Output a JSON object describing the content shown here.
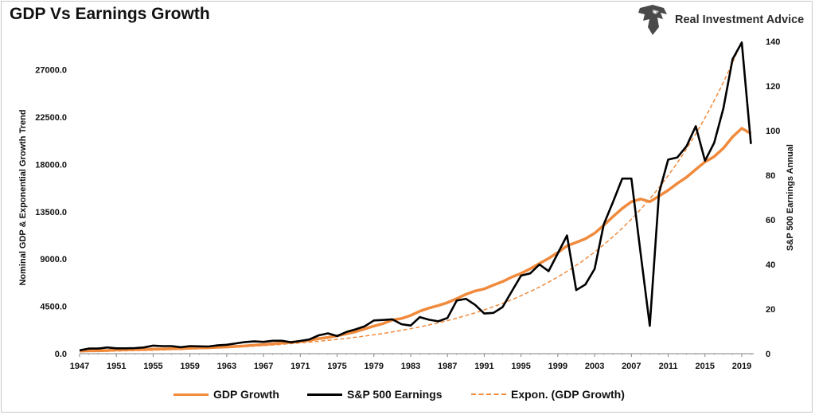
{
  "header": {
    "title": "GDP Vs Earnings Growth",
    "brand": "Real Investment Advice"
  },
  "colors": {
    "gdp": "#f08a3c",
    "earnings": "#000000",
    "trend": "#f08a3c"
  },
  "chart_data": {
    "type": "line",
    "title": "GDP Vs Earnings Growth",
    "ylabel_left": "Nominal GDP & Exponential Growth Trend",
    "ylabel_right": "S&P 500 Earnings Annual",
    "ylim_left": [
      0,
      29700
    ],
    "ylim_right": [
      0,
      140
    ],
    "yticks_left": [
      "0.0",
      "4500.0",
      "9000.0",
      "13500.0",
      "18000.0",
      "22500.0",
      "27000.0"
    ],
    "yticks_right": [
      "0",
      "20",
      "40",
      "60",
      "80",
      "100",
      "120",
      "140"
    ],
    "xticks": [
      "1947",
      "1951",
      "1955",
      "1959",
      "1963",
      "1967",
      "1971",
      "1975",
      "1979",
      "1983",
      "1987",
      "1991",
      "1995",
      "1999",
      "2003",
      "2007",
      "2011",
      "2015",
      "2019"
    ],
    "grid": false,
    "legend_position": "bottom",
    "series": [
      {
        "name": "GDP Growth",
        "axis": "left",
        "x": [
          1947,
          1948,
          1949,
          1950,
          1951,
          1952,
          1953,
          1954,
          1955,
          1956,
          1957,
          1958,
          1959,
          1960,
          1961,
          1962,
          1963,
          1964,
          1965,
          1966,
          1967,
          1968,
          1969,
          1970,
          1971,
          1972,
          1973,
          1974,
          1975,
          1976,
          1977,
          1978,
          1979,
          1980,
          1981,
          1982,
          1983,
          1984,
          1985,
          1986,
          1987,
          1988,
          1989,
          1990,
          1991,
          1992,
          1993,
          1994,
          1995,
          1996,
          1997,
          1998,
          1999,
          2000,
          2001,
          2002,
          2003,
          2004,
          2005,
          2006,
          2007,
          2008,
          2009,
          2010,
          2011,
          2012,
          2013,
          2014,
          2015,
          2016,
          2017,
          2018,
          2019,
          2020
        ],
        "values": [
          244,
          269,
          272,
          301,
          348,
          368,
          389,
          391,
          425,
          449,
          474,
          481,
          522,
          543,
          563,
          605,
          638,
          686,
          743,
          815,
          862,
          943,
          1019,
          1073,
          1164,
          1280,
          1429,
          1549,
          1689,
          1877,
          2086,
          2357,
          2632,
          2857,
          3207,
          3343,
          3634,
          4037,
          4339,
          4579,
          4855,
          5236,
          5642,
          5963,
          6158,
          6520,
          6859,
          7287,
          7639,
          8073,
          8577,
          9062,
          9631,
          10252,
          10582,
          10936,
          11458,
          12214,
          13037,
          13815,
          14452,
          14713,
          14449,
          14992,
          15543,
          16197,
          16785,
          17527,
          18238,
          18745,
          19543,
          20612,
          21433,
          20937
        ]
      },
      {
        "name": "S&P 500 Earnings",
        "axis": "right",
        "x": [
          1947,
          1948,
          1949,
          1950,
          1951,
          1952,
          1953,
          1954,
          1955,
          1956,
          1957,
          1958,
          1959,
          1960,
          1961,
          1962,
          1963,
          1964,
          1965,
          1966,
          1967,
          1968,
          1969,
          1970,
          1971,
          1972,
          1973,
          1974,
          1975,
          1976,
          1977,
          1978,
          1979,
          1980,
          1981,
          1982,
          1983,
          1984,
          1985,
          1986,
          1987,
          1988,
          1989,
          1990,
          1991,
          1992,
          1993,
          1994,
          1995,
          1996,
          1997,
          1998,
          1999,
          2000,
          2001,
          2002,
          2003,
          2004,
          2005,
          2006,
          2007,
          2008,
          2009,
          2010,
          2011,
          2012,
          2013,
          2014,
          2015,
          2016,
          2017,
          2018,
          2019,
          2020
        ],
        "values": [
          1.5,
          2.3,
          2.3,
          2.8,
          2.4,
          2.4,
          2.5,
          2.8,
          3.6,
          3.4,
          3.4,
          2.9,
          3.4,
          3.3,
          3.2,
          3.7,
          4.0,
          4.6,
          5.2,
          5.5,
          5.3,
          5.8,
          5.8,
          5.1,
          5.7,
          6.4,
          8.2,
          9.1,
          7.9,
          9.7,
          10.9,
          12.3,
          14.9,
          15.1,
          15.4,
          13.2,
          12.6,
          16.4,
          15.2,
          14.5,
          16.0,
          23.8,
          24.6,
          21.9,
          18.0,
          18.3,
          20.9,
          28.0,
          35.0,
          36.0,
          40.0,
          37.0,
          45.0,
          53.0,
          28.5,
          31.0,
          38.0,
          58.0,
          68.0,
          78.5,
          78.5,
          45.0,
          12.5,
          72.0,
          87.0,
          88.0,
          93.0,
          102.0,
          86.5,
          94.5,
          110.0,
          132.0,
          139.5,
          94.0
        ]
      },
      {
        "name": "Expon. (GDP Growth)",
        "axis": "left",
        "dashed": true,
        "start_year": 1947,
        "end_year": 2019,
        "start_value": 190,
        "end_value": 29700
      }
    ]
  }
}
